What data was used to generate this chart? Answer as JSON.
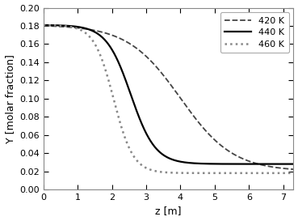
{
  "title": "",
  "xlabel": "z [m]",
  "ylabel": "Y [molar fraction]",
  "xlim": [
    0,
    7.3
  ],
  "ylim": [
    0.0,
    0.2
  ],
  "yticks": [
    0.0,
    0.02,
    0.04,
    0.06,
    0.08,
    0.1,
    0.12,
    0.14,
    0.16,
    0.18,
    0.2
  ],
  "xticks": [
    0,
    1,
    2,
    3,
    4,
    5,
    6,
    7
  ],
  "curves": [
    {
      "label": "420 K",
      "linestyle": "--",
      "color": "#444444",
      "y0": 0.181,
      "y_end": 0.02,
      "x_mid": 4.0,
      "steepness": 1.3
    },
    {
      "label": "440 K",
      "linestyle": "-",
      "color": "#000000",
      "y0": 0.181,
      "y_end": 0.028,
      "x_mid": 2.55,
      "steepness": 2.8
    },
    {
      "label": "460 K",
      "linestyle": ":",
      "color": "#888888",
      "y0": 0.181,
      "y_end": 0.018,
      "x_mid": 2.05,
      "steepness": 3.5
    }
  ],
  "legend_loc": "upper right",
  "background_color": "#ffffff",
  "figure_facecolor": "#ffffff"
}
